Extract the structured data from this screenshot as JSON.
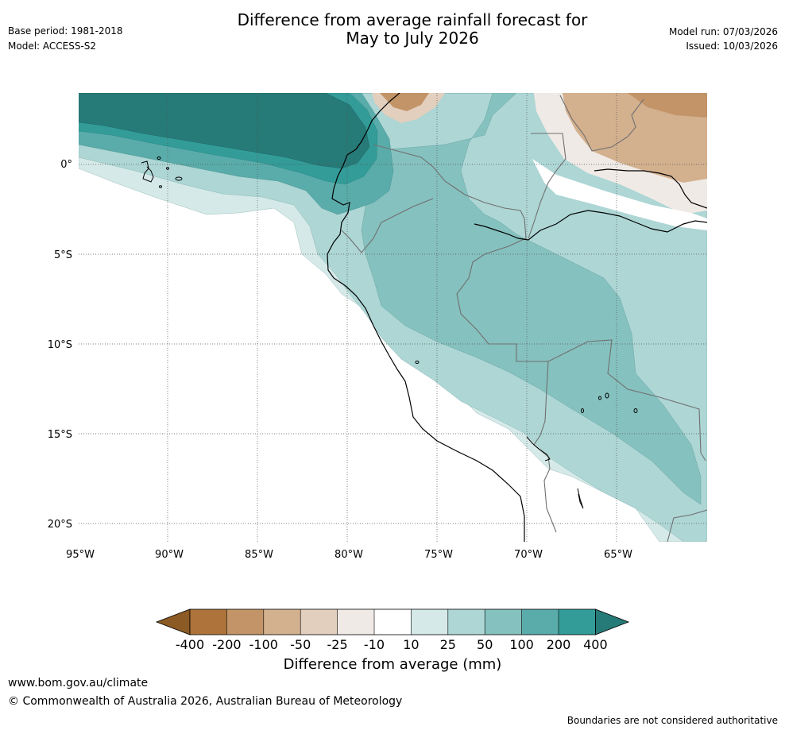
{
  "header": {
    "title_line1": "Difference from average rainfall forecast for",
    "title_line2": "May to July 2026",
    "base_period": "Base period: 1981-2018",
    "model": "Model: ACCESS-S2",
    "model_run": "Model run: 07/03/2026",
    "issued": "Issued: 10/03/2026"
  },
  "map": {
    "lon_labels": [
      "95°W",
      "90°W",
      "85°W",
      "80°W",
      "75°W",
      "70°W",
      "65°W"
    ],
    "lat_labels": [
      "0°",
      "5°S",
      "10°S",
      "15°S",
      "20°S"
    ]
  },
  "colorbar": {
    "labels": [
      "-400",
      "-200",
      "-100",
      "-50",
      "-25",
      "-10",
      "10",
      "25",
      "50",
      "100",
      "200",
      "400"
    ],
    "colors": [
      "#8c5a24",
      "#ad733a",
      "#c29467",
      "#d3b08e",
      "#e2cfbd",
      "#f0eae6",
      "#ffffff",
      "#d5eae8",
      "#add6d5",
      "#85c1bf",
      "#5aacaa",
      "#339c98",
      "#267a77"
    ],
    "title": "Difference from average (mm)"
  },
  "footer": {
    "url": "www.bom.gov.au/climate",
    "copyright": "© Commonwealth of Australia 2026, Australian Bureau of Meteorology",
    "disclaimer": "Boundaries are not considered authoritative"
  }
}
